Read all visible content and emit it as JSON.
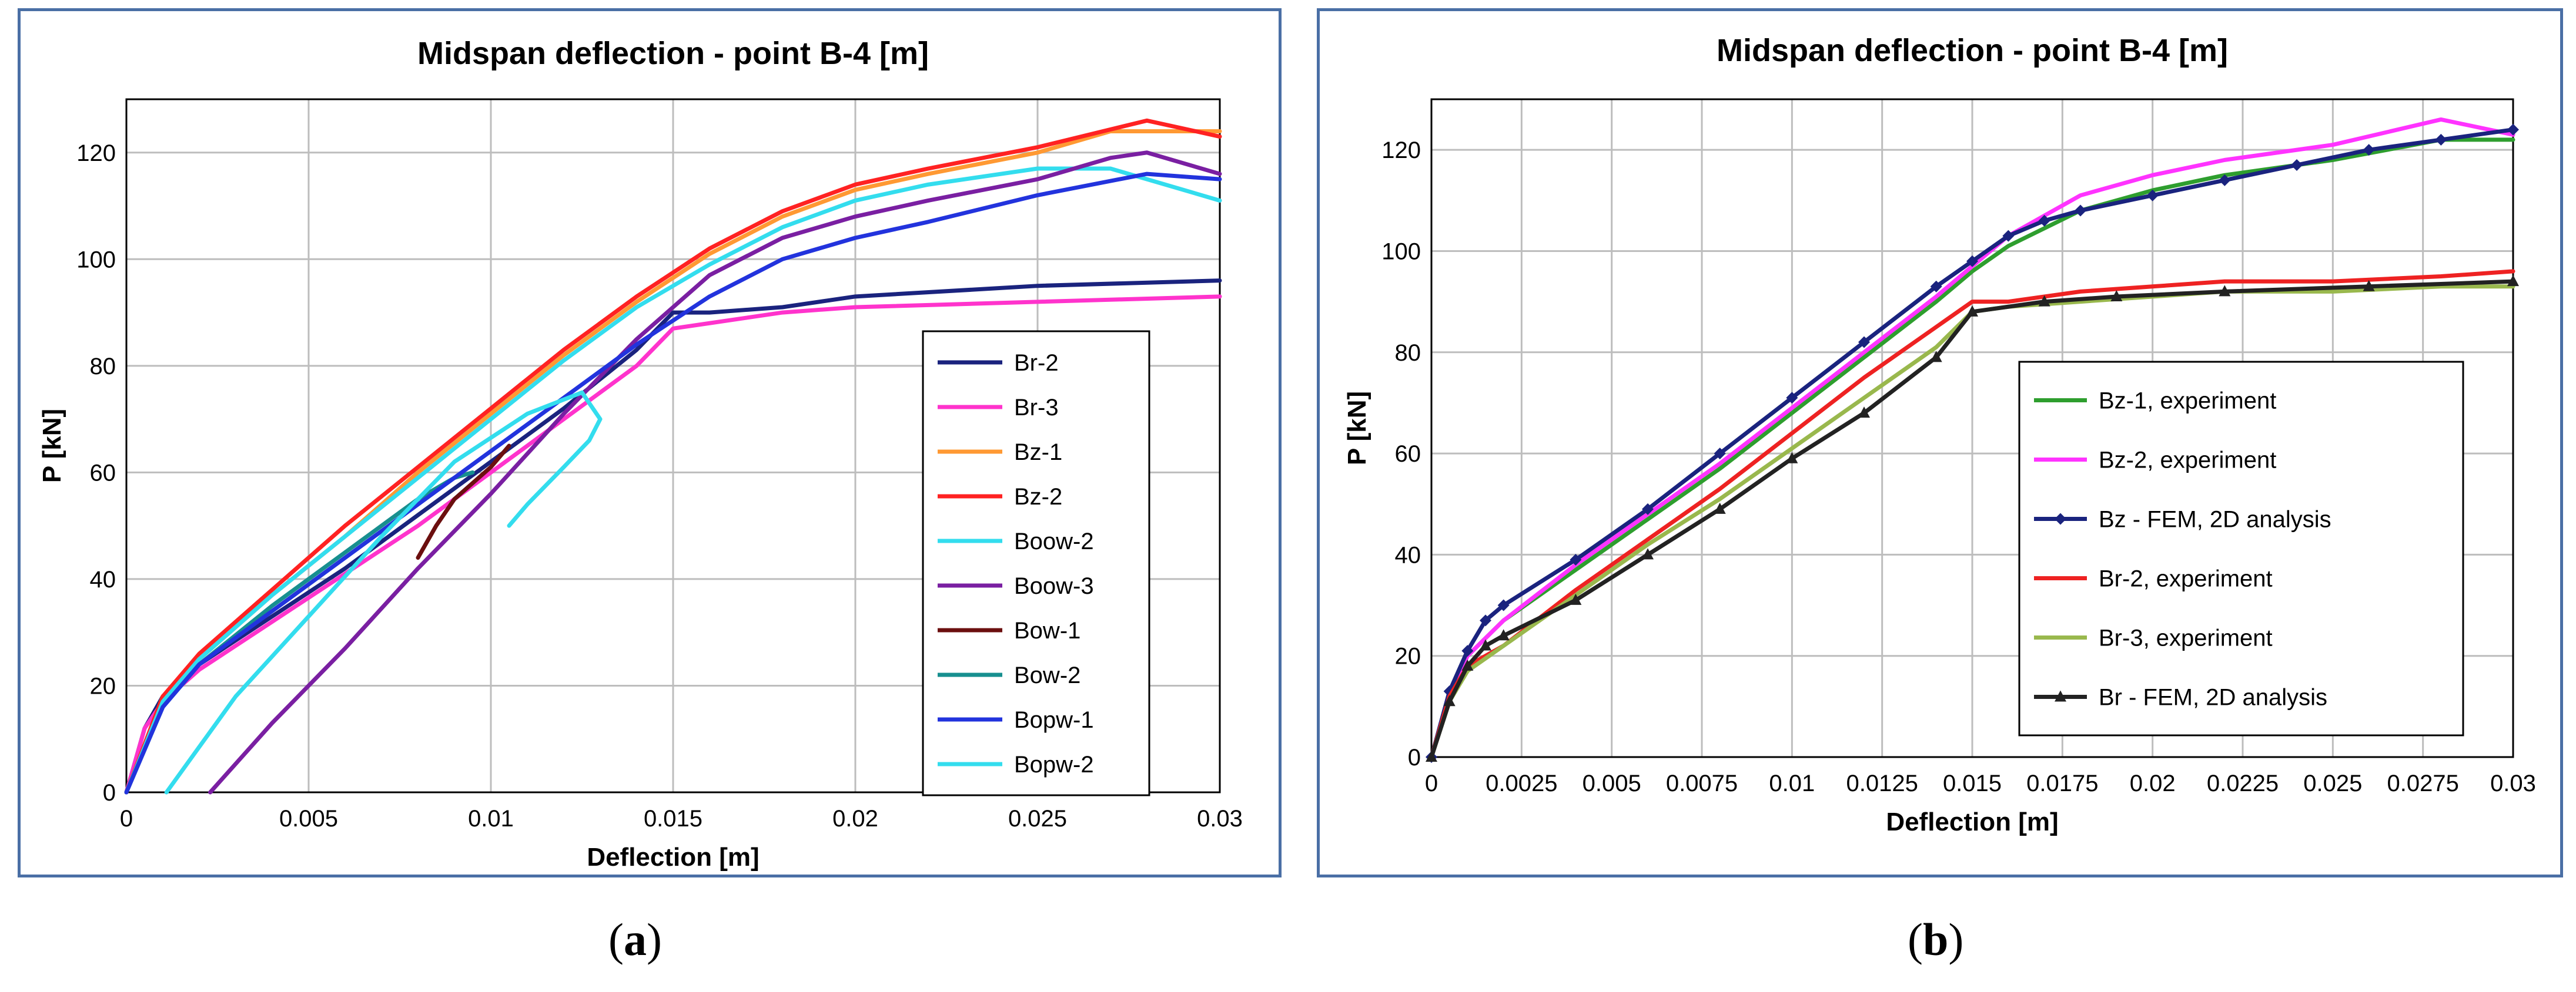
{
  "captions": {
    "a": "a",
    "b": "b"
  },
  "chart_data": [
    {
      "type": "line",
      "title": "Midspan deflection - point B-4 [m]",
      "xlabel": "Deflection [m]",
      "ylabel": "P [kN]",
      "xlim": [
        0,
        0.03
      ],
      "ylim": [
        0,
        130
      ],
      "xticks": [
        0,
        0.005,
        0.01,
        0.015,
        0.02,
        0.025,
        0.03
      ],
      "xtick_labels": [
        "0",
        "0.005",
        "0.01",
        "0.015",
        "0.02",
        "0.025",
        "0.03"
      ],
      "yticks": [
        0,
        20,
        40,
        60,
        80,
        100,
        120
      ],
      "ytick_labels": [
        "0",
        "20",
        "40",
        "60",
        "80",
        "100",
        "120"
      ],
      "grid": true,
      "legend_position": "right",
      "series": [
        {
          "name": "Br-2",
          "color": "#1a237e",
          "x": [
            0,
            0.0005,
            0.001,
            0.002,
            0.004,
            0.006,
            0.008,
            0.01,
            0.012,
            0.014,
            0.015,
            0.016,
            0.018,
            0.02,
            0.025,
            0.03
          ],
          "y": [
            0,
            12,
            18,
            24,
            33,
            42,
            52,
            62,
            72,
            83,
            90,
            90,
            91,
            93,
            95,
            96
          ]
        },
        {
          "name": "Br-3",
          "color": "#ff33cc",
          "x": [
            0,
            0.0005,
            0.001,
            0.002,
            0.004,
            0.006,
            0.008,
            0.01,
            0.012,
            0.014,
            0.015,
            0.016,
            0.018,
            0.02,
            0.025,
            0.03
          ],
          "y": [
            0,
            12,
            17,
            23,
            32,
            41,
            50,
            60,
            70,
            80,
            87,
            88,
            90,
            91,
            92,
            93
          ]
        },
        {
          "name": "Bz-1",
          "color": "#ff9933",
          "x": [
            0,
            0.001,
            0.002,
            0.004,
            0.006,
            0.008,
            0.01,
            0.012,
            0.014,
            0.016,
            0.018,
            0.02,
            0.022,
            0.025,
            0.027,
            0.03
          ],
          "y": [
            0,
            18,
            25,
            37,
            48,
            60,
            71,
            82,
            92,
            101,
            108,
            113,
            116,
            120,
            124,
            124
          ]
        },
        {
          "name": "Bz-2",
          "color": "#ff2222",
          "x": [
            0,
            0.001,
            0.002,
            0.004,
            0.006,
            0.008,
            0.01,
            0.012,
            0.014,
            0.016,
            0.018,
            0.02,
            0.022,
            0.025,
            0.028,
            0.03
          ],
          "y": [
            0,
            18,
            26,
            38,
            50,
            61,
            72,
            83,
            93,
            102,
            109,
            114,
            117,
            121,
            126,
            123
          ]
        },
        {
          "name": "Boow-2",
          "color": "#33ddee",
          "x": [
            0,
            0.001,
            0.002,
            0.004,
            0.006,
            0.008,
            0.01,
            0.012,
            0.014,
            0.016,
            0.018,
            0.02,
            0.022,
            0.025,
            0.027,
            0.03
          ],
          "y": [
            0,
            17,
            25,
            37,
            48,
            59,
            70,
            81,
            91,
            99,
            106,
            111,
            114,
            117,
            117,
            111
          ]
        },
        {
          "name": "Boow-3",
          "color": "#7a1fa2",
          "x": [
            0.0023,
            0.004,
            0.006,
            0.008,
            0.01,
            0.012,
            0.014,
            0.016,
            0.018,
            0.02,
            0.022,
            0.025,
            0.027,
            0.028,
            0.03
          ],
          "y": [
            0,
            13,
            27,
            42,
            56,
            71,
            85,
            97,
            104,
            108,
            111,
            115,
            119,
            120,
            116
          ]
        },
        {
          "name": "Bow-1",
          "color": "#6b0f0f",
          "x": [
            0.008,
            0.0085,
            0.009,
            0.0095,
            0.01,
            0.0105
          ],
          "y": [
            44,
            50,
            55,
            58,
            61,
            65
          ]
        },
        {
          "name": "Bow-2",
          "color": "#178f8f",
          "x": [
            0,
            0.001,
            0.002,
            0.004,
            0.006,
            0.008,
            0.009,
            0.0095
          ],
          "y": [
            0,
            16,
            24,
            35,
            45,
            55,
            59,
            60
          ]
        },
        {
          "name": "Bopw-1",
          "color": "#2233dd",
          "x": [
            0,
            0.001,
            0.002,
            0.004,
            0.006,
            0.008,
            0.01,
            0.012,
            0.014,
            0.016,
            0.018,
            0.02,
            0.022,
            0.025,
            0.028,
            0.03
          ],
          "y": [
            0,
            16,
            24,
            34,
            44,
            54,
            64,
            74,
            84,
            93,
            100,
            104,
            107,
            112,
            116,
            115
          ]
        },
        {
          "name": "Bopw-2",
          "color": "#33ddee",
          "x": [
            0.0011,
            0.003,
            0.005,
            0.007,
            0.009,
            0.011,
            0.0125,
            0.013,
            0.0127,
            0.012,
            0.011,
            0.0105
          ],
          "y": [
            0,
            18,
            33,
            48,
            62,
            71,
            75,
            70,
            66,
            61,
            54,
            50
          ]
        }
      ]
    },
    {
      "type": "line",
      "title": "Midspan deflection - point   B-4   [m]",
      "xlabel": "Deflection [m]",
      "ylabel": "P [kN]",
      "xlim": [
        0,
        0.03
      ],
      "ylim": [
        0,
        130
      ],
      "xticks": [
        0,
        0.0025,
        0.005,
        0.0075,
        0.01,
        0.0125,
        0.015,
        0.0175,
        0.02,
        0.0225,
        0.025,
        0.0275,
        0.03
      ],
      "xtick_labels": [
        "0",
        "0.0025",
        "0.005",
        "0.0075",
        "0.01",
        "0.0125",
        "0.015",
        "0.0175",
        "0.02",
        "0.0225",
        "0.025",
        "0.0275",
        "0.03"
      ],
      "yticks": [
        0,
        20,
        40,
        60,
        80,
        100,
        120
      ],
      "ytick_labels": [
        "0",
        "20",
        "40",
        "60",
        "80",
        "100",
        "120"
      ],
      "grid": true,
      "legend_position": "center-right",
      "series": [
        {
          "name": "Bz-1, experiment",
          "color": "#2e9e2e",
          "x": [
            0,
            0.0005,
            0.001,
            0.002,
            0.004,
            0.006,
            0.008,
            0.01,
            0.012,
            0.014,
            0.015,
            0.016,
            0.018,
            0.02,
            0.022,
            0.025,
            0.028,
            0.03
          ],
          "y": [
            0,
            12,
            20,
            27,
            37,
            47,
            57,
            68,
            79,
            90,
            96,
            101,
            108,
            112,
            115,
            118,
            122,
            122
          ]
        },
        {
          "name": "Bz-2, experiment",
          "color": "#ff33ff",
          "x": [
            0,
            0.0005,
            0.001,
            0.002,
            0.004,
            0.006,
            0.008,
            0.01,
            0.012,
            0.014,
            0.015,
            0.016,
            0.018,
            0.02,
            0.022,
            0.025,
            0.028,
            0.03
          ],
          "y": [
            0,
            12,
            20,
            27,
            38,
            48,
            58,
            69,
            80,
            91,
            97,
            103,
            111,
            115,
            118,
            121,
            126,
            123
          ]
        },
        {
          "name": "Bz - FEM, 2D analysis",
          "color": "#1a237e",
          "x": [
            0,
            0.0005,
            0.001,
            0.0015,
            0.002,
            0.004,
            0.006,
            0.008,
            0.01,
            0.012,
            0.014,
            0.015,
            0.016,
            0.017,
            0.018,
            0.02,
            0.022,
            0.024,
            0.026,
            0.028,
            0.03
          ],
          "y": [
            0,
            13,
            21,
            27,
            30,
            39,
            49,
            60,
            71,
            82,
            93,
            98,
            103,
            106,
            108,
            111,
            114,
            117,
            120,
            122,
            124
          ],
          "markers": "diamond"
        },
        {
          "name": "Br-2, experiment",
          "color": "#ee2222",
          "x": [
            0,
            0.0005,
            0.001,
            0.002,
            0.004,
            0.006,
            0.008,
            0.01,
            0.012,
            0.014,
            0.015,
            0.016,
            0.018,
            0.02,
            0.022,
            0.025,
            0.028,
            0.03
          ],
          "y": [
            0,
            12,
            18,
            22,
            33,
            43,
            53,
            64,
            75,
            85,
            90,
            90,
            92,
            93,
            94,
            94,
            95,
            96
          ]
        },
        {
          "name": "Br-3, experiment",
          "color": "#99b84d",
          "x": [
            0,
            0.0005,
            0.001,
            0.002,
            0.004,
            0.006,
            0.008,
            0.01,
            0.012,
            0.014,
            0.015,
            0.016,
            0.018,
            0.02,
            0.022,
            0.025,
            0.028,
            0.03
          ],
          "y": [
            0,
            11,
            17,
            22,
            32,
            42,
            51,
            61,
            71,
            81,
            88,
            89,
            90,
            91,
            92,
            92,
            93,
            93
          ]
        },
        {
          "name": "Br - FEM, 2D analysis",
          "color": "#222222",
          "x": [
            0,
            0.0005,
            0.001,
            0.0015,
            0.002,
            0.004,
            0.006,
            0.008,
            0.01,
            0.012,
            0.014,
            0.015,
            0.017,
            0.019,
            0.022,
            0.026,
            0.03
          ],
          "y": [
            0,
            11,
            18,
            22,
            24,
            31,
            40,
            49,
            59,
            68,
            79,
            88,
            90,
            91,
            92,
            93,
            94
          ],
          "markers": "triangle"
        }
      ]
    }
  ]
}
